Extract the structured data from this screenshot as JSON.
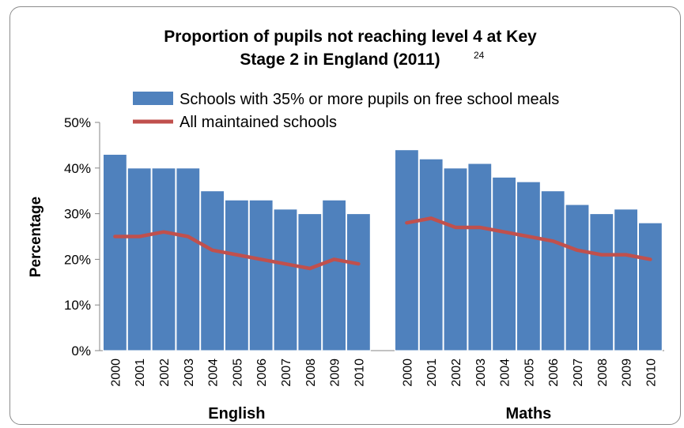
{
  "chart_data": {
    "type": "bar",
    "title_line1": "Proportion of pupils not reaching level 4 at Key",
    "title_line2": "Stage 2 in England (2011)",
    "title_superscript": "24",
    "ylabel": "Percentage",
    "ylim": [
      0,
      50
    ],
    "yticks": [
      "0%",
      "10%",
      "20%",
      "30%",
      "40%",
      "50%"
    ],
    "grid": false,
    "legend_position": "top",
    "categories": [
      "2000",
      "2001",
      "2002",
      "2003",
      "2004",
      "2005",
      "2006",
      "2007",
      "2008",
      "2009",
      "2010"
    ],
    "groups": [
      {
        "name": "English",
        "bar_values": [
          43,
          40,
          40,
          40,
          35,
          33,
          33,
          31,
          30,
          33,
          30
        ],
        "line_values": [
          25,
          25,
          26,
          25,
          22,
          21,
          20,
          19,
          18,
          20,
          19
        ]
      },
      {
        "name": "Maths",
        "bar_values": [
          44,
          42,
          40,
          41,
          38,
          37,
          35,
          32,
          30,
          31,
          28
        ],
        "line_values": [
          28,
          29,
          27,
          27,
          26,
          25,
          24,
          22,
          21,
          21,
          20
        ]
      }
    ],
    "series": [
      {
        "name": "Schools with 35% or more pupils on free school meals",
        "kind": "bar",
        "color": "#4f81bd"
      },
      {
        "name": "All maintained schools",
        "kind": "line",
        "color": "#c0504d"
      }
    ]
  }
}
